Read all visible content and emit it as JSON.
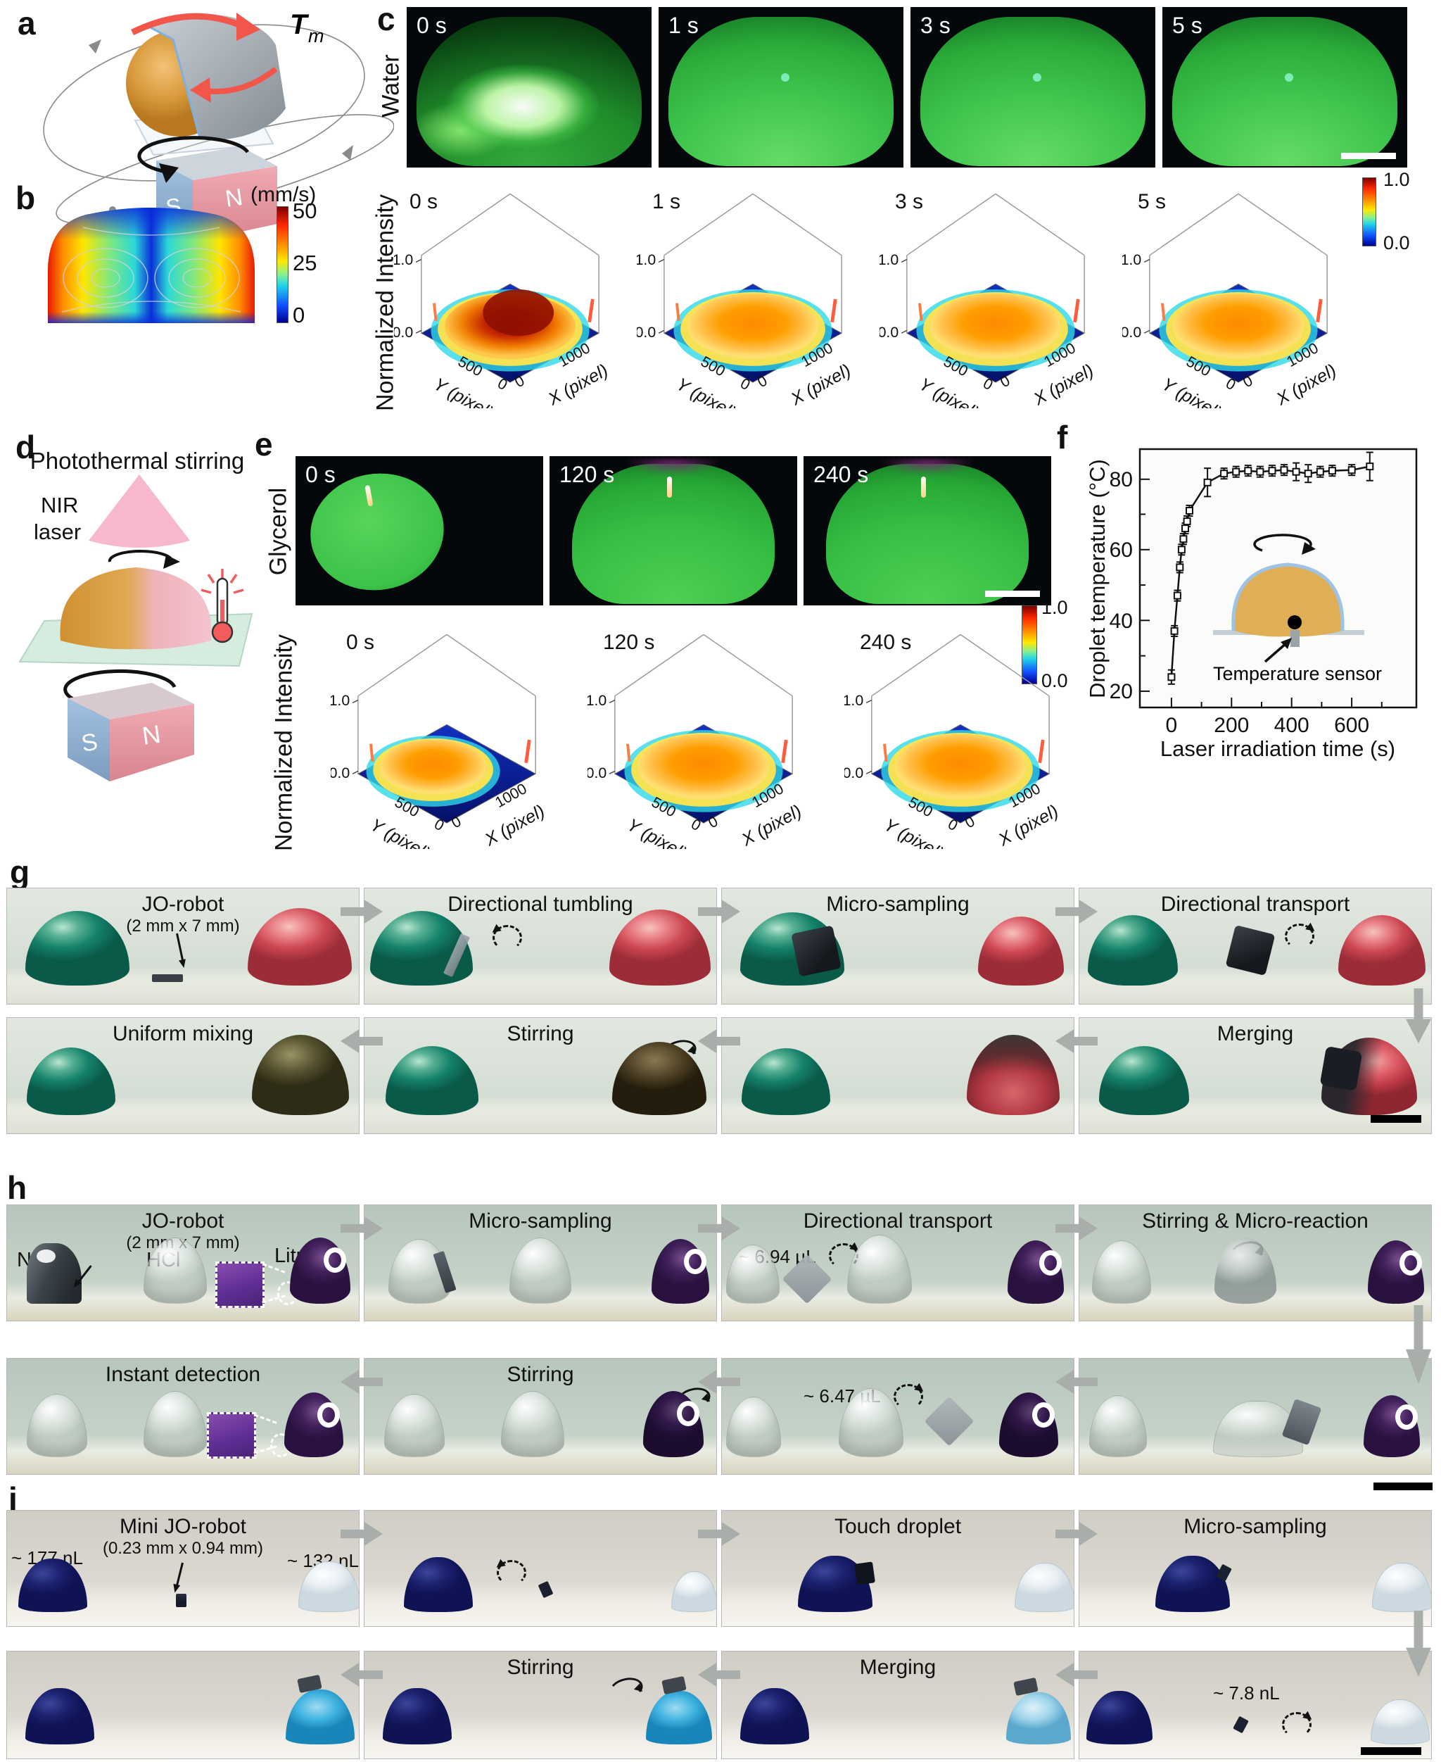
{
  "labels": {
    "a": "a",
    "b": "b",
    "c": "c",
    "d": "d",
    "e": "e",
    "f": "f",
    "g": "g",
    "h": "h",
    "i": "i"
  },
  "panel_a": {
    "torque": "T",
    "torque_sub": "m",
    "magnet_s": "S",
    "magnet_n": "N"
  },
  "panel_b": {
    "colorbar_title": "(mm/s)",
    "colorbar_ticks": [
      "50",
      "25",
      "0"
    ]
  },
  "panel_c": {
    "row_label": "Water",
    "ylabel": "Normalized Intensity",
    "photo_times": [
      "0 s",
      "1 s",
      "3 s",
      "5 s"
    ],
    "plot_times": [
      "0 s",
      "1 s",
      "3 s",
      "5 s"
    ],
    "z_ticks": [
      "1.0",
      "0.0"
    ],
    "x_axis_label": "X (pixel)",
    "y_axis_label": "Y (pixel)",
    "x_axis_ticks": [
      "0",
      "1000"
    ],
    "y_axis_ticks": [
      "500",
      "0"
    ],
    "colorbar_ticks": [
      "1.0",
      "0.0"
    ]
  },
  "panel_d": {
    "title": "Photothermal stirring",
    "laser_label_lines": [
      "NIR",
      "laser"
    ],
    "magnet_s": "S",
    "magnet_n": "N"
  },
  "panel_e": {
    "row_label": "Glycerol",
    "ylabel": "Normalized Intensity",
    "photo_times": [
      "0 s",
      "120 s",
      "240 s"
    ],
    "plot_times": [
      "0 s",
      "120 s",
      "240 s"
    ],
    "z_ticks": [
      "1.0",
      "0.0"
    ],
    "x_axis_label": "X (pixel)",
    "y_axis_label": "Y (pixel)",
    "x_axis_ticks": [
      "0",
      "1000"
    ],
    "y_axis_ticks": [
      "500",
      "0"
    ],
    "colorbar_ticks": [
      "1.0",
      "0.0"
    ]
  },
  "panel_f": {
    "inset_label": "Temperature sensor"
  },
  "chart_data": {
    "type": "line",
    "title": "",
    "xlabel": "Laser irradiation time (s)",
    "ylabel": "Droplet temperature (°C)",
    "xticks": [
      0,
      200,
      400,
      600
    ],
    "yticks": [
      20,
      40,
      60,
      80
    ],
    "xlim": [
      -105,
      815
    ],
    "ylim": [
      15.4,
      88.4
    ],
    "grid": false,
    "legend": "none",
    "x": [
      0,
      10,
      20,
      28,
      34,
      40,
      46,
      52,
      60,
      120,
      175,
      215,
      255,
      295,
      335,
      375,
      415,
      455,
      495,
      535,
      600,
      660
    ],
    "y": [
      24,
      37,
      47,
      55,
      60,
      63,
      66,
      68,
      71,
      79,
      81.5,
      82,
      82.3,
      82,
      82.3,
      82.5,
      82,
      81.5,
      82,
      82.3,
      82.5,
      83.5
    ],
    "yerr": [
      2,
      1.5,
      1.5,
      1.5,
      1.5,
      1.5,
      1.5,
      1.5,
      1.5,
      4,
      1.5,
      1.5,
      1.5,
      1.5,
      1.5,
      1.5,
      2.5,
      2.5,
      1.5,
      1.5,
      1.5,
      4
    ]
  },
  "panel_g": {
    "rows": [
      [
        {
          "title": "JO-robot",
          "subtitle": "(2 mm x 7 mm)",
          "scene": [
            {
              "k": "droplet",
              "c": "green",
              "x": 26,
              "w": 148,
              "h": 106
            },
            {
              "k": "droplet",
              "c": "red",
              "x": 342,
              "w": 148,
              "h": 110
            },
            {
              "k": "ptr",
              "x": 240,
              "y": 64,
              "len": 44,
              "rot": -12
            },
            {
              "k": "robot",
              "v": "flat",
              "x": 206,
              "y": 122
            }
          ]
        },
        {
          "title": "Directional tumbling",
          "scene": [
            {
              "k": "droplet",
              "c": "green",
              "x": 8,
              "w": 146,
              "h": 106
            },
            {
              "k": "robot",
              "v": "tilt",
              "x": 124,
              "y": 64
            },
            {
              "k": "rotd",
              "x": 182,
              "y": 52,
              "dir": "left"
            },
            {
              "k": "droplet",
              "c": "red",
              "x": 348,
              "w": 144,
              "h": 108
            }
          ]
        },
        {
          "title": "Micro-sampling",
          "scene": [
            {
              "k": "droplet",
              "c": "green",
              "x": 26,
              "w": 148,
              "h": 104
            },
            {
              "k": "robot",
              "v": "cube",
              "x": 104,
              "y": 58
            },
            {
              "k": "droplet",
              "c": "red",
              "x": 364,
              "w": 122,
              "h": 98
            }
          ]
        },
        {
          "title": "Directional transport",
          "scene": [
            {
              "k": "droplet",
              "c": "green",
              "x": 12,
              "w": 128,
              "h": 100
            },
            {
              "k": "robot",
              "v": "cubeR",
              "x": 214,
              "y": 58
            },
            {
              "k": "rotd",
              "x": 292,
              "y": 50,
              "dir": "right"
            },
            {
              "k": "droplet",
              "c": "red",
              "x": 368,
              "w": 124,
              "h": 100
            }
          ]
        }
      ],
      [
        {
          "title": "Uniform mixing",
          "scene": [
            {
              "k": "droplet",
              "c": "green",
              "x": 28,
              "w": 126,
              "h": 96
            },
            {
              "k": "droplet",
              "c": "olive",
              "x": 348,
              "w": 138,
              "h": 114
            }
          ]
        },
        {
          "title": "Stirring",
          "scene": [
            {
              "k": "droplet",
              "c": "green",
              "x": 30,
              "w": 132,
              "h": 98
            },
            {
              "k": "rot",
              "x": 424,
              "y": 32
            },
            {
              "k": "droplet",
              "c": "brown",
              "x": 352,
              "w": 134,
              "h": 104
            }
          ]
        },
        {
          "title": "",
          "scene": [
            {
              "k": "droplet",
              "c": "green",
              "x": 28,
              "w": 126,
              "h": 95
            },
            {
              "k": "droplet",
              "c": "shell",
              "x": 348,
              "w": 132,
              "h": 114
            }
          ]
        },
        {
          "title": "Merging",
          "scene": [
            {
              "k": "droplet",
              "c": "green",
              "x": 28,
              "w": 128,
              "h": 98
            },
            {
              "k": "droplet",
              "c": "redmix",
              "x": 344,
              "w": 136,
              "h": 110
            },
            {
              "k": "robot",
              "v": "cube2",
              "x": 346,
              "y": 44
            },
            {
              "k": "sbar",
              "x": 414,
              "y": 138,
              "w": 72
            }
          ]
        }
      ]
    ]
  },
  "panel_h": {
    "rows": [
      [
        {
          "title": "JO-robot",
          "subtitle": "(2 mm x 7 mm)",
          "scene": [
            {
              "k": "lbl",
              "t": "NaOH",
              "x": 14,
              "y": 62
            },
            {
              "k": "lbl",
              "t": "HCl",
              "x": 198,
              "y": 62
            },
            {
              "k": "lbl",
              "t": "Litmus",
              "x": 380,
              "y": 56
            },
            {
              "k": "droplet",
              "c": "darkwrap",
              "x": 28,
              "w": 78,
              "h": 86
            },
            {
              "k": "ptr",
              "x": 118,
              "y": 86,
              "len": 34,
              "rot": 38
            },
            {
              "k": "droplet",
              "c": "clear",
              "x": 194,
              "w": 88,
              "h": 92
            },
            {
              "k": "inset",
              "x": 296,
              "y": 80
            },
            {
              "k": "dcirc",
              "x": 384,
              "y": 108
            },
            {
              "k": "droplet",
              "c": "purple",
              "x": 402,
              "w": 86,
              "h": 94
            }
          ]
        },
        {
          "title": "Micro-sampling",
          "scene": [
            {
              "k": "droplet",
              "c": "clear",
              "x": 34,
              "w": 86,
              "h": 90
            },
            {
              "k": "robot",
              "v": "tilt2",
              "x": 106,
              "y": 66
            },
            {
              "k": "droplet",
              "c": "clear",
              "x": 206,
              "w": 86,
              "h": 92
            },
            {
              "k": "droplet",
              "c": "purple",
              "x": 408,
              "w": 82,
              "h": 92
            }
          ]
        },
        {
          "title": "Directional transport",
          "scene": [
            {
              "k": "note",
              "t": "~ 6.94 µL",
              "x": 24,
              "y": 58
            },
            {
              "k": "rotd",
              "x": 152,
              "y": 54,
              "dir": "right"
            },
            {
              "k": "droplet",
              "c": "clear",
              "x": 6,
              "w": 74,
              "h": 82
            },
            {
              "k": "robot",
              "v": "tiltg",
              "x": 96,
              "y": 80
            },
            {
              "k": "droplet",
              "c": "clear",
              "x": 178,
              "w": 90,
              "h": 96
            },
            {
              "k": "droplet",
              "c": "purple",
              "x": 406,
              "w": 80,
              "h": 90
            }
          ]
        },
        {
          "title": "Stirring & Micro-reaction",
          "scene": [
            {
              "k": "droplet",
              "c": "clear",
              "x": 18,
              "w": 82,
              "h": 88
            },
            {
              "k": "rot",
              "x": 214,
              "y": 52
            },
            {
              "k": "droplet",
              "c": "graymix",
              "x": 192,
              "w": 88,
              "h": 94
            },
            {
              "k": "droplet",
              "c": "purple",
              "x": 410,
              "w": 80,
              "h": 90
            }
          ]
        }
      ],
      [
        {
          "title": "Instant detection",
          "scene": [
            {
              "k": "droplet",
              "c": "clear",
              "x": 28,
              "w": 84,
              "h": 88
            },
            {
              "k": "droplet",
              "c": "clear",
              "x": 194,
              "w": 88,
              "h": 92
            },
            {
              "k": "inset",
              "x": 284,
              "y": 76
            },
            {
              "k": "dcirc",
              "x": 374,
              "y": 106
            },
            {
              "k": "droplet",
              "c": "purple",
              "x": 394,
              "w": 84,
              "h": 92
            }
          ]
        },
        {
          "title": "Stirring",
          "scene": [
            {
              "k": "droplet",
              "c": "clear",
              "x": 28,
              "w": 84,
              "h": 88
            },
            {
              "k": "droplet",
              "c": "clear",
              "x": 194,
              "w": 88,
              "h": 92
            },
            {
              "k": "rot",
              "x": 444,
              "y": 42
            },
            {
              "k": "droplet",
              "c": "purpledark",
              "x": 396,
              "w": 86,
              "h": 94
            }
          ]
        },
        {
          "title": "",
          "scene": [
            {
              "k": "note",
              "t": "~ 6.47 µL",
              "x": 116,
              "y": 38
            },
            {
              "k": "rotd",
              "x": 244,
              "y": 36,
              "dir": "right"
            },
            {
              "k": "droplet",
              "c": "clear",
              "x": 6,
              "w": 76,
              "h": 84
            },
            {
              "k": "droplet",
              "c": "clear",
              "x": 166,
              "w": 90,
              "h": 96
            },
            {
              "k": "robot",
              "v": "tiltg",
              "x": 298,
              "y": 64
            },
            {
              "k": "droplet",
              "c": "purpledark",
              "x": 394,
              "w": 84,
              "h": 92
            }
          ]
        },
        {
          "title": "",
          "scene": [
            {
              "k": "droplet",
              "c": "clear",
              "x": 14,
              "w": 80,
              "h": 86
            },
            {
              "k": "droplet",
              "c": "clearspread",
              "x": 190,
              "w": 126,
              "h": 78
            },
            {
              "k": "robot",
              "v": "lean",
              "x": 296,
              "y": 62
            },
            {
              "k": "droplet",
              "c": "purple",
              "x": 404,
              "w": 80,
              "h": 88
            }
          ]
        }
      ]
    ]
  },
  "panel_i": {
    "rows": [
      [
        {
          "title": "Mini JO-robot",
          "subtitle": "(0.23 mm x 0.94 mm)",
          "scene": [
            {
              "k": "note",
              "t": "~ 177 nL",
              "x": 6,
              "y": 52
            },
            {
              "k": "note",
              "t": "~ 132 nL",
              "x": 398,
              "y": 56
            },
            {
              "k": "droplet",
              "c": "navy",
              "x": 16,
              "w": 98,
              "h": 76
            },
            {
              "k": "ptr",
              "x": 248,
              "y": 74,
              "len": 38,
              "rot": 14
            },
            {
              "k": "robot",
              "v": "tiny",
              "x": 240,
              "y": 118
            },
            {
              "k": "droplet",
              "c": "pale",
              "x": 414,
              "w": 86,
              "h": 70
            }
          ]
        },
        {
          "title": "",
          "scene": [
            {
              "k": "droplet",
              "c": "navy",
              "x": 56,
              "w": 98,
              "h": 78
            },
            {
              "k": "rotd",
              "x": 188,
              "y": 70,
              "dir": "left"
            },
            {
              "k": "robot",
              "v": "tinytilt",
              "x": 250,
              "y": 102
            },
            {
              "k": "droplet",
              "c": "pale",
              "x": 436,
              "w": 64,
              "h": 56
            }
          ]
        },
        {
          "title": "Touch droplet",
          "scene": [
            {
              "k": "droplet",
              "c": "navy",
              "x": 108,
              "w": 106,
              "h": 80
            },
            {
              "k": "robot",
              "v": "touch",
              "x": 190,
              "y": 74
            },
            {
              "k": "droplet",
              "c": "pale",
              "x": 416,
              "w": 84,
              "h": 68
            }
          ]
        },
        {
          "title": "Micro-sampling",
          "scene": [
            {
              "k": "droplet",
              "c": "navy",
              "x": 108,
              "w": 106,
              "h": 80
            },
            {
              "k": "robot",
              "v": "tinytilt2",
              "x": 198,
              "y": 78
            },
            {
              "k": "droplet",
              "c": "pale",
              "x": 416,
              "w": 84,
              "h": 68
            }
          ]
        }
      ],
      [
        {
          "title": "",
          "scene": [
            {
              "k": "droplet",
              "c": "navy",
              "x": 26,
              "w": 98,
              "h": 80
            },
            {
              "k": "droplet",
              "c": "cyan",
              "x": 396,
              "w": 98,
              "h": 78
            },
            {
              "k": "robot",
              "v": "perch",
              "x": 414,
              "y": 36
            }
          ]
        },
        {
          "title": "Stirring",
          "scene": [
            {
              "k": "rot",
              "x": 348,
              "y": 38
            },
            {
              "k": "droplet",
              "c": "navy",
              "x": 26,
              "w": 98,
              "h": 80
            },
            {
              "k": "droplet",
              "c": "cyan",
              "x": 400,
              "w": 94,
              "h": 76
            },
            {
              "k": "robot",
              "v": "perch",
              "x": 424,
              "y": 38
            }
          ]
        },
        {
          "title": "Merging",
          "scene": [
            {
              "k": "droplet",
              "c": "navy",
              "x": 26,
              "w": 98,
              "h": 80
            },
            {
              "k": "droplet",
              "c": "lblue",
              "x": 404,
              "w": 92,
              "h": 74
            },
            {
              "k": "robot",
              "v": "perch",
              "x": 416,
              "y": 40
            }
          ]
        },
        {
          "title": "",
          "scene": [
            {
              "k": "note",
              "t": "~ 7.8 nL",
              "x": 190,
              "y": 44
            },
            {
              "k": "droplet",
              "c": "navy",
              "x": 10,
              "w": 94,
              "h": 76
            },
            {
              "k": "robot",
              "v": "tinytilt2",
              "x": 222,
              "y": 94
            },
            {
              "k": "rotd",
              "x": 288,
              "y": 86,
              "dir": "right"
            },
            {
              "k": "droplet",
              "c": "pale",
              "x": 414,
              "w": 82,
              "h": 62
            },
            {
              "k": "sbar",
              "x": 400,
              "y": 136,
              "w": 86
            }
          ]
        }
      ]
    ]
  },
  "colors": {
    "accent_red": "#f2564a",
    "magnet_blue": "#8fb4da",
    "magnet_pink": "#f0a0a8",
    "flow_arrow": "#a9aeaa",
    "jet_top": "#7f0000",
    "jet_bottom": "#000090"
  }
}
